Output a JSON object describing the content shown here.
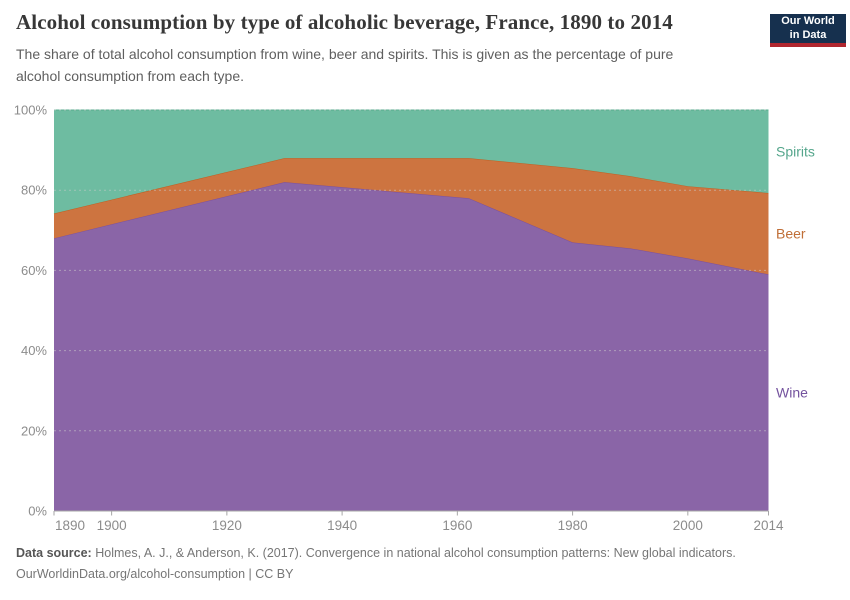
{
  "header": {
    "title": "Alcohol consumption by type of alcoholic beverage, France, 1890 to 2014",
    "subtitle": "The share of total alcohol consumption from wine, beer and spirits. This is given as the percentage of pure alcohol consumption from each type."
  },
  "logo": {
    "line1": "Our World",
    "line2": "in Data",
    "bg_color": "#16304e",
    "accent_color": "#b0262e",
    "text_color": "#ffffff"
  },
  "chart_data": {
    "type": "area",
    "stacked": true,
    "normalized": true,
    "title": "Alcohol consumption by type of alcoholic beverage, France, 1890 to 2014",
    "subtitle": "The share of total alcohol consumption from wine, beer and spirits. This is given as the percentage of pure alcohol consumption from each type.",
    "unit": "%",
    "x": [
      1890,
      1930,
      1962,
      1980,
      1990,
      2000,
      2014
    ],
    "series": [
      {
        "name": "Wine",
        "values": [
          68.0,
          82.0,
          78.0,
          67.0,
          65.5,
          63.0,
          59.0
        ],
        "fill": "#8a65a7",
        "stroke": "#7b4f9e",
        "label_color": "#74539e"
      },
      {
        "name": "Beer",
        "values": [
          6.2,
          6.0,
          10.0,
          18.5,
          18.0,
          18.0,
          20.3
        ],
        "fill": "#cd7440",
        "stroke": "#c05f20",
        "label_color": "#c06e36"
      },
      {
        "name": "Spirits",
        "values": [
          25.8,
          12.0,
          12.0,
          14.5,
          16.5,
          19.0,
          20.7
        ],
        "fill": "#6ebca1",
        "stroke": "#54ab8c",
        "label_color": "#55a68c"
      }
    ],
    "xlim": [
      1890,
      2014
    ],
    "ylim": [
      0,
      100
    ],
    "x_ticks": [
      1890,
      1900,
      1920,
      1940,
      1960,
      1980,
      2000,
      2014
    ],
    "y_ticks": [
      0,
      20,
      40,
      60,
      80,
      100
    ],
    "y_tick_suffix": "%",
    "grid": true,
    "gridline_color": "#cccccc",
    "axis_color": "#a6a6a6",
    "tick_label_color": "#8c8c8c",
    "legend_position": "right",
    "legend_entries": [
      "Spirits",
      "Beer",
      "Wine"
    ]
  },
  "footer": {
    "source_label": "Data source:",
    "source_text": "Holmes, A. J., & Anderson, K. (2017). Convergence in national alcohol consumption patterns: New global indicators.",
    "link_line": "OurWorldinData.org/alcohol-consumption | CC BY"
  }
}
